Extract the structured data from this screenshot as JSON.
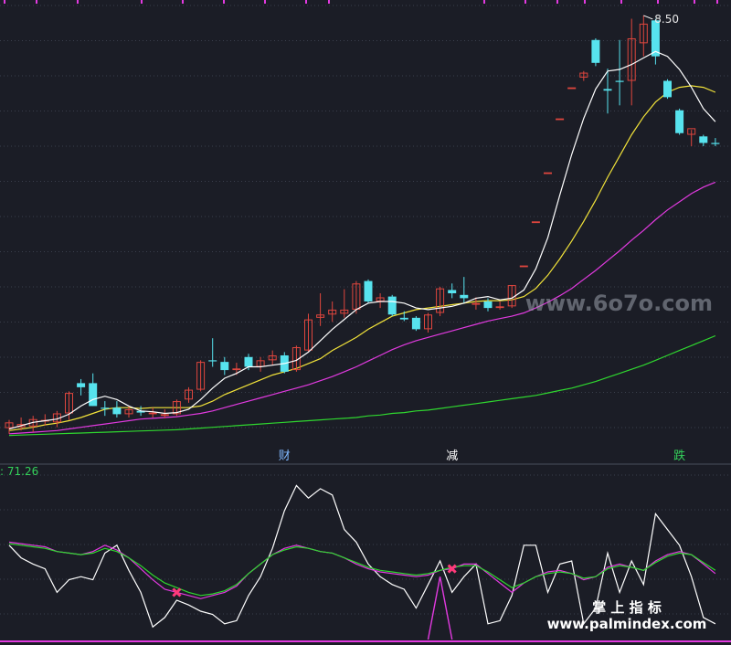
{
  "chart_data": {
    "type": "candlestick",
    "main": {
      "ylim": [
        3.3,
        8.6
      ],
      "high_label": "8.50",
      "candles": [
        {
          "o": 3.45,
          "h": 3.55,
          "l": 3.38,
          "c": 3.52,
          "up": true
        },
        {
          "o": 3.5,
          "h": 3.58,
          "l": 3.42,
          "c": 3.46,
          "up": true
        },
        {
          "o": 3.47,
          "h": 3.6,
          "l": 3.4,
          "c": 3.56,
          "up": true
        },
        {
          "o": 3.55,
          "h": 3.62,
          "l": 3.48,
          "c": 3.53,
          "up": true
        },
        {
          "o": 3.52,
          "h": 3.66,
          "l": 3.46,
          "c": 3.63,
          "up": true
        },
        {
          "o": 3.63,
          "h": 3.9,
          "l": 3.55,
          "c": 3.88,
          "up": true
        },
        {
          "o": 3.95,
          "h": 4.05,
          "l": 3.85,
          "c": 4.0,
          "up": false
        },
        {
          "o": 4.0,
          "h": 4.12,
          "l": 3.72,
          "c": 3.72,
          "up": false
        },
        {
          "o": 3.7,
          "h": 3.78,
          "l": 3.6,
          "c": 3.7,
          "up": false
        },
        {
          "o": 3.7,
          "h": 3.78,
          "l": 3.58,
          "c": 3.62,
          "up": false
        },
        {
          "o": 3.62,
          "h": 3.72,
          "l": 3.58,
          "c": 3.68,
          "up": true
        },
        {
          "o": 3.66,
          "h": 3.72,
          "l": 3.6,
          "c": 3.64,
          "up": false
        },
        {
          "o": 3.64,
          "h": 3.7,
          "l": 3.58,
          "c": 3.62,
          "up": true
        },
        {
          "o": 3.62,
          "h": 3.68,
          "l": 3.57,
          "c": 3.6,
          "up": true
        },
        {
          "o": 3.62,
          "h": 3.8,
          "l": 3.6,
          "c": 3.78,
          "up": true
        },
        {
          "o": 3.8,
          "h": 3.95,
          "l": 3.76,
          "c": 3.92,
          "up": true
        },
        {
          "o": 3.92,
          "h": 4.28,
          "l": 3.9,
          "c": 4.26,
          "up": true
        },
        {
          "o": 4.28,
          "h": 4.55,
          "l": 4.2,
          "c": 4.28,
          "up": false
        },
        {
          "o": 4.26,
          "h": 4.32,
          "l": 4.1,
          "c": 4.16,
          "up": false
        },
        {
          "o": 4.16,
          "h": 4.25,
          "l": 4.1,
          "c": 4.18,
          "up": true
        },
        {
          "o": 4.32,
          "h": 4.36,
          "l": 4.16,
          "c": 4.2,
          "up": false
        },
        {
          "o": 4.2,
          "h": 4.32,
          "l": 4.14,
          "c": 4.28,
          "up": true
        },
        {
          "o": 4.28,
          "h": 4.4,
          "l": 4.22,
          "c": 4.34,
          "up": true
        },
        {
          "o": 4.34,
          "h": 4.38,
          "l": 4.12,
          "c": 4.14,
          "up": false
        },
        {
          "o": 4.16,
          "h": 4.46,
          "l": 4.14,
          "c": 4.44,
          "up": true
        },
        {
          "o": 4.4,
          "h": 4.85,
          "l": 4.38,
          "c": 4.78,
          "up": true
        },
        {
          "o": 4.8,
          "h": 5.1,
          "l": 4.7,
          "c": 4.84,
          "up": true
        },
        {
          "o": 4.84,
          "h": 5.0,
          "l": 4.75,
          "c": 4.9,
          "up": true
        },
        {
          "o": 4.85,
          "h": 5.15,
          "l": 4.8,
          "c": 4.9,
          "up": true
        },
        {
          "o": 4.9,
          "h": 5.25,
          "l": 4.85,
          "c": 5.22,
          "up": true
        },
        {
          "o": 5.25,
          "h": 5.27,
          "l": 4.98,
          "c": 5.0,
          "up": false
        },
        {
          "o": 5.0,
          "h": 5.1,
          "l": 4.92,
          "c": 5.05,
          "up": true
        },
        {
          "o": 5.06,
          "h": 5.08,
          "l": 4.82,
          "c": 4.84,
          "up": false
        },
        {
          "o": 4.8,
          "h": 4.88,
          "l": 4.76,
          "c": 4.78,
          "up": false
        },
        {
          "o": 4.8,
          "h": 4.82,
          "l": 4.64,
          "c": 4.66,
          "up": false
        },
        {
          "o": 4.66,
          "h": 4.86,
          "l": 4.62,
          "c": 4.84,
          "up": true
        },
        {
          "o": 4.86,
          "h": 5.18,
          "l": 4.82,
          "c": 5.16,
          "up": true
        },
        {
          "o": 5.14,
          "h": 5.22,
          "l": 5.04,
          "c": 5.1,
          "up": false
        },
        {
          "o": 5.08,
          "h": 5.3,
          "l": 4.98,
          "c": 5.04,
          "up": false
        },
        {
          "o": 4.98,
          "h": 5.05,
          "l": 4.9,
          "c": 4.98,
          "up": true
        },
        {
          "o": 5.0,
          "h": 5.04,
          "l": 4.88,
          "c": 4.92,
          "up": false
        },
        {
          "o": 4.92,
          "h": 5.0,
          "l": 4.9,
          "c": 4.94,
          "up": true
        },
        {
          "o": 4.94,
          "h": 5.2,
          "l": 4.92,
          "c": 5.2,
          "up": true
        },
        {
          "o": 5.44,
          "h": 5.44,
          "l": 5.44,
          "c": 5.44,
          "up": true
        },
        {
          "o": 5.98,
          "h": 5.98,
          "l": 5.98,
          "c": 5.98,
          "up": true
        },
        {
          "o": 6.58,
          "h": 6.58,
          "l": 6.58,
          "c": 6.58,
          "up": true
        },
        {
          "o": 7.24,
          "h": 7.24,
          "l": 7.24,
          "c": 7.24,
          "up": true
        },
        {
          "o": 7.62,
          "h": 7.62,
          "l": 7.62,
          "c": 7.62,
          "up": true
        },
        {
          "o": 7.74,
          "h": 7.82,
          "l": 7.7,
          "c": 7.8,
          "up": true
        },
        {
          "o": 7.92,
          "h": 8.22,
          "l": 7.88,
          "c": 8.2,
          "up": false
        },
        {
          "o": 7.6,
          "h": 7.85,
          "l": 7.3,
          "c": 7.58,
          "up": false
        },
        {
          "o": 7.7,
          "h": 8.2,
          "l": 7.4,
          "c": 7.7,
          "up": false
        },
        {
          "o": 7.7,
          "h": 8.46,
          "l": 7.4,
          "c": 8.22,
          "up": true
        },
        {
          "o": 8.16,
          "h": 8.5,
          "l": 8.0,
          "c": 8.4,
          "up": true
        },
        {
          "o": 8.44,
          "h": 8.46,
          "l": 7.9,
          "c": 8.0,
          "up": false
        },
        {
          "o": 7.7,
          "h": 7.72,
          "l": 7.48,
          "c": 7.5,
          "up": false
        },
        {
          "o": 7.34,
          "h": 7.36,
          "l": 7.04,
          "c": 7.06,
          "up": false
        },
        {
          "o": 7.04,
          "h": 7.1,
          "l": 6.9,
          "c": 7.12,
          "up": true
        },
        {
          "o": 7.02,
          "h": 7.04,
          "l": 6.9,
          "c": 6.94,
          "up": false
        },
        {
          "o": 6.94,
          "h": 7.0,
          "l": 6.9,
          "c": 6.94,
          "up": false
        }
      ],
      "ma5": [
        3.44,
        3.48,
        3.52,
        3.54,
        3.56,
        3.62,
        3.72,
        3.8,
        3.84,
        3.8,
        3.72,
        3.66,
        3.65,
        3.63,
        3.64,
        3.68,
        3.8,
        3.94,
        4.06,
        4.12,
        4.2,
        4.2,
        4.22,
        4.24,
        4.28,
        4.38,
        4.52,
        4.66,
        4.78,
        4.9,
        4.98,
        5.0,
        5.0,
        4.98,
        4.92,
        4.9,
        4.92,
        4.94,
        4.98,
        5.04,
        5.06,
        5.02,
        5.04,
        5.14,
        5.4,
        5.78,
        6.3,
        6.8,
        7.24,
        7.6,
        7.82,
        7.84,
        7.9,
        7.98,
        8.06,
        8.0,
        7.84,
        7.62,
        7.36,
        7.2
      ],
      "ma10": [
        3.42,
        3.44,
        3.46,
        3.49,
        3.51,
        3.54,
        3.58,
        3.63,
        3.68,
        3.7,
        3.7,
        3.69,
        3.7,
        3.7,
        3.7,
        3.7,
        3.72,
        3.78,
        3.86,
        3.92,
        3.98,
        4.04,
        4.1,
        4.14,
        4.18,
        4.24,
        4.3,
        4.4,
        4.48,
        4.56,
        4.66,
        4.74,
        4.82,
        4.86,
        4.9,
        4.92,
        4.94,
        4.96,
        4.98,
        5.0,
        5.01,
        5.01,
        5.02,
        5.06,
        5.16,
        5.32,
        5.52,
        5.74,
        5.98,
        6.24,
        6.52,
        6.78,
        7.04,
        7.26,
        7.44,
        7.56,
        7.62,
        7.64,
        7.62,
        7.56
      ],
      "ma20": [
        3.38,
        3.39,
        3.4,
        3.41,
        3.42,
        3.44,
        3.46,
        3.48,
        3.5,
        3.52,
        3.54,
        3.56,
        3.57,
        3.58,
        3.59,
        3.61,
        3.63,
        3.66,
        3.7,
        3.74,
        3.78,
        3.82,
        3.86,
        3.9,
        3.94,
        3.98,
        4.03,
        4.08,
        4.14,
        4.2,
        4.27,
        4.34,
        4.41,
        4.47,
        4.52,
        4.56,
        4.6,
        4.64,
        4.68,
        4.72,
        4.76,
        4.79,
        4.82,
        4.86,
        4.92,
        4.99,
        5.07,
        5.16,
        5.27,
        5.38,
        5.5,
        5.62,
        5.75,
        5.87,
        6.0,
        6.12,
        6.22,
        6.32,
        6.4,
        6.46
      ],
      "ma60": [
        3.36,
        3.365,
        3.37,
        3.375,
        3.38,
        3.385,
        3.39,
        3.395,
        3.4,
        3.405,
        3.41,
        3.415,
        3.42,
        3.425,
        3.43,
        3.44,
        3.45,
        3.46,
        3.47,
        3.48,
        3.49,
        3.5,
        3.51,
        3.52,
        3.53,
        3.54,
        3.55,
        3.56,
        3.57,
        3.58,
        3.6,
        3.61,
        3.63,
        3.64,
        3.66,
        3.67,
        3.69,
        3.71,
        3.73,
        3.75,
        3.77,
        3.79,
        3.81,
        3.83,
        3.85,
        3.88,
        3.91,
        3.94,
        3.98,
        4.02,
        4.07,
        4.12,
        4.17,
        4.22,
        4.28,
        4.34,
        4.4,
        4.46,
        4.52,
        4.58
      ],
      "markers": [
        {
          "text": "财",
          "index": 23,
          "color": "#7fb8ff"
        },
        {
          "text": "减",
          "index": 37,
          "color": "#ffffff"
        },
        {
          "text": "跌",
          "index": 56,
          "color": "#34d15a"
        }
      ]
    },
    "indicator": {
      "ylim": [
        0,
        100
      ],
      "value_label": "71.26",
      "raw": [
        60,
        52,
        48,
        45,
        30,
        38,
        40,
        38,
        55,
        60,
        44,
        30,
        8,
        14,
        25,
        22,
        18,
        16,
        10,
        12,
        28,
        40,
        58,
        82,
        98,
        90,
        96,
        92,
        70,
        62,
        48,
        40,
        35,
        32,
        20,
        35,
        50,
        30,
        40,
        48,
        10,
        12,
        28,
        60,
        60,
        30,
        48,
        50,
        10,
        20,
        55,
        30,
        50,
        35,
        80,
        70,
        60,
        40,
        14,
        10
      ],
      "k": [
        62,
        61,
        60,
        59,
        56,
        55,
        54,
        56,
        60,
        57,
        52,
        45,
        38,
        32,
        30,
        28,
        26,
        28,
        30,
        34,
        42,
        48,
        54,
        58,
        60,
        58,
        56,
        55,
        52,
        48,
        45,
        43,
        42,
        41,
        40,
        41,
        44,
        45,
        48,
        48,
        42,
        36,
        30,
        36,
        40,
        43,
        44,
        42,
        38,
        40,
        46,
        48,
        46,
        44,
        50,
        54,
        56,
        54,
        48,
        42
      ],
      "d": [
        61,
        60,
        59,
        58,
        56,
        55,
        54,
        55,
        58,
        56,
        52,
        47,
        41,
        36,
        33,
        30,
        28,
        29,
        31,
        35,
        42,
        48,
        54,
        57,
        59,
        58,
        56,
        55,
        52,
        49,
        46,
        44,
        43,
        42,
        41,
        42,
        44,
        46,
        47,
        47,
        43,
        38,
        33,
        36,
        40,
        42,
        43,
        42,
        39,
        40,
        45,
        47,
        46,
        44,
        49,
        53,
        55,
        54,
        49,
        44
      ],
      "spike": {
        "index": 36,
        "value": 40
      },
      "cross_markers": [
        14,
        37
      ]
    },
    "watermarks": {
      "site_top": "www.6o7o.com",
      "cn": "掌 上 指 标",
      "site_bottom": "www.palmindex.com"
    },
    "colors": {
      "up": "#e0463e",
      "down": "#57e3ee",
      "ma5": "#ffffff",
      "ma10": "#f2e33a",
      "ma20": "#e23ae0",
      "ma60": "#2fd72f",
      "ind_raw": "#ffffff",
      "ind_k": "#e23ae0",
      "ind_d": "#2fd72f",
      "spike": "#e23ae0",
      "cross": "#ff3a7a"
    }
  }
}
